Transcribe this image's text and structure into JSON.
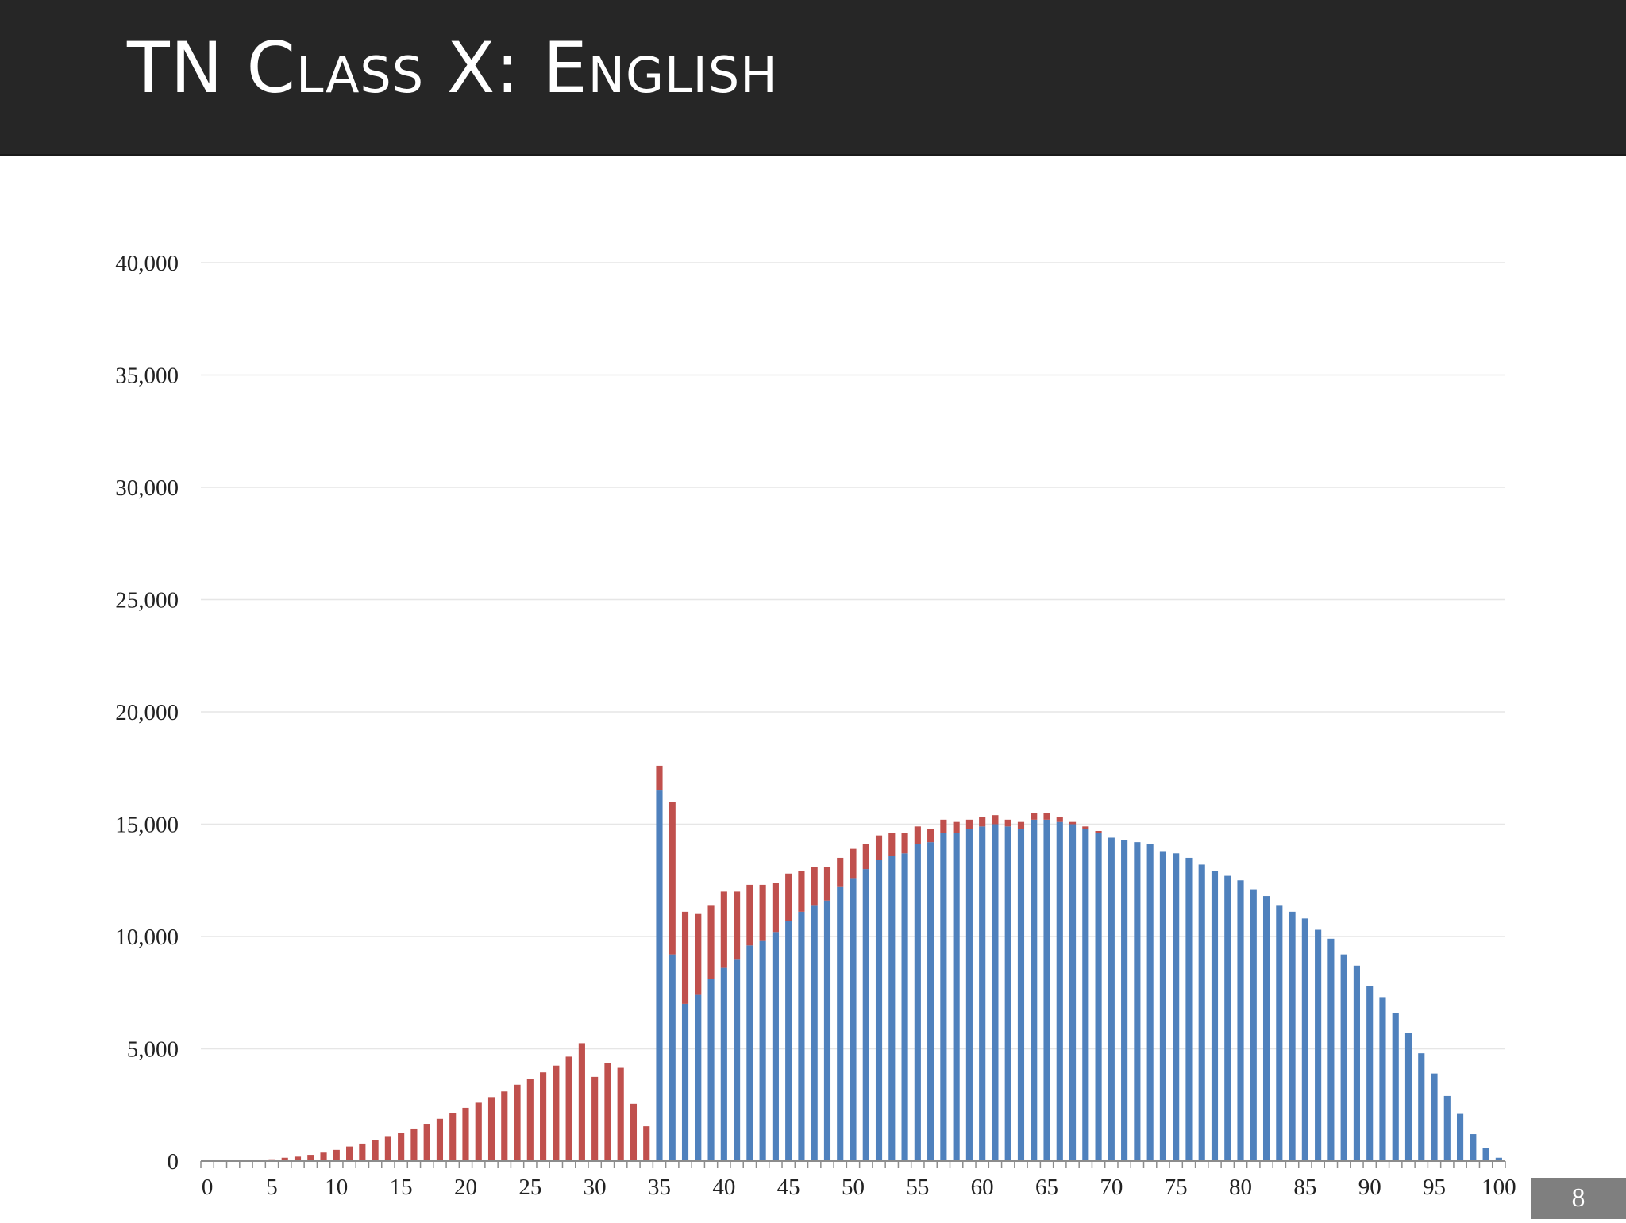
{
  "slide": {
    "title": "TN Class X: English",
    "page_number": "8"
  },
  "colors": {
    "header_background": "#262626",
    "pass_series": "#4f81bd",
    "fail_series": "#c0504d",
    "gridline": "#e6e6e6",
    "page_number_background": "#7f7f7f"
  },
  "chart_data": {
    "type": "bar",
    "stacked": true,
    "title": "",
    "xlabel": "",
    "ylabel": "",
    "ylim": [
      0,
      40000
    ],
    "y_ticks": [
      0,
      5000,
      10000,
      15000,
      20000,
      25000,
      30000,
      35000,
      40000
    ],
    "y_tick_labels": [
      "0",
      "5,000",
      "10,000",
      "15,000",
      "20,000",
      "25,000",
      "30,000",
      "35,000",
      "40,000"
    ],
    "x_tick_labels": [
      "0",
      "5",
      "10",
      "15",
      "20",
      "25",
      "30",
      "35",
      "40",
      "45",
      "50",
      "55",
      "60",
      "65",
      "70",
      "75",
      "80",
      "85",
      "90",
      "95",
      "100"
    ],
    "grid": "horizontal",
    "legend": "none",
    "categories": [
      0,
      1,
      2,
      3,
      4,
      5,
      6,
      7,
      8,
      9,
      10,
      11,
      12,
      13,
      14,
      15,
      16,
      17,
      18,
      19,
      20,
      21,
      22,
      23,
      24,
      25,
      26,
      27,
      28,
      29,
      30,
      31,
      32,
      33,
      34,
      35,
      36,
      37,
      38,
      39,
      40,
      41,
      42,
      43,
      44,
      45,
      46,
      47,
      48,
      49,
      50,
      51,
      52,
      53,
      54,
      55,
      56,
      57,
      58,
      59,
      60,
      61,
      62,
      63,
      64,
      65,
      66,
      67,
      68,
      69,
      70,
      71,
      72,
      73,
      74,
      75,
      76,
      77,
      78,
      79,
      80,
      81,
      82,
      83,
      84,
      85,
      86,
      87,
      88,
      89,
      90,
      91,
      92,
      93,
      94,
      95,
      96,
      97,
      98,
      99,
      100
    ],
    "series": [
      {
        "color": "#4f81bd",
        "values": [
          0,
          0,
          0,
          0,
          0,
          0,
          0,
          0,
          0,
          0,
          0,
          0,
          0,
          0,
          0,
          0,
          0,
          0,
          0,
          0,
          0,
          0,
          0,
          0,
          0,
          0,
          0,
          0,
          0,
          0,
          0,
          0,
          0,
          0,
          0,
          16500,
          9200,
          7000,
          7400,
          8100,
          8600,
          9000,
          9600,
          9800,
          10200,
          10700,
          11100,
          11400,
          11600,
          12200,
          12600,
          13000,
          13400,
          13600,
          13700,
          14100,
          14200,
          14600,
          14600,
          14800,
          14900,
          15000,
          14900,
          14800,
          15200,
          15200,
          15100,
          15000,
          14800,
          14600,
          14400,
          14300,
          14200,
          14100,
          13800,
          13700,
          13500,
          13200,
          12900,
          12700,
          12500,
          12100,
          11800,
          11400,
          11100,
          10800,
          10300,
          9900,
          9200,
          8700,
          7800,
          7300,
          6600,
          5700,
          4800,
          3900,
          2900,
          2100,
          1200,
          600,
          150
        ]
      },
      {
        "color": "#c0504d",
        "values": [
          0,
          0,
          0,
          50,
          60,
          80,
          150,
          200,
          280,
          380,
          500,
          650,
          780,
          920,
          1080,
          1260,
          1450,
          1660,
          1880,
          2120,
          2370,
          2600,
          2850,
          3100,
          3400,
          3650,
          3950,
          4250,
          4650,
          5250,
          3750,
          4350,
          4150,
          2550,
          1550,
          1100,
          6800,
          4100,
          3600,
          3300,
          3400,
          3000,
          2700,
          2500,
          2200,
          2100,
          1800,
          1700,
          1500,
          1300,
          1300,
          1100,
          1100,
          1000,
          900,
          800,
          600,
          600,
          500,
          400,
          400,
          400,
          300,
          300,
          300,
          300,
          200,
          100,
          100,
          100,
          0,
          0,
          0,
          0,
          0,
          0,
          0,
          0,
          0,
          0,
          0,
          0,
          0,
          0,
          0,
          0,
          0,
          0,
          0,
          0,
          0,
          0,
          0,
          0,
          0,
          0,
          0,
          0,
          0,
          0,
          0
        ]
      }
    ]
  }
}
